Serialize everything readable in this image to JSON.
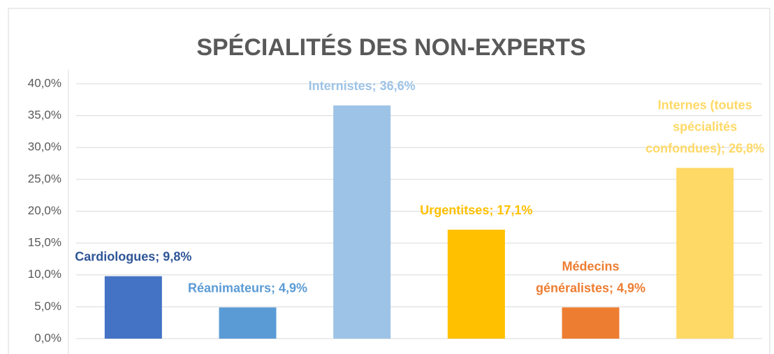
{
  "chart_data": {
    "type": "bar",
    "title": "SPÉCIALITÉS DES NON-EXPERTS",
    "values": [
      9.8,
      4.9,
      36.6,
      17.1,
      4.9,
      26.8
    ],
    "value_labels": [
      "Cardiologues; 9,8%",
      "Réanimateurs; 4,9%",
      "Internistes; 36,6%",
      "Urgentitses; 17,1%",
      "Médecins généralistes; 4,9%",
      "Internes (toutes spécialités confondues); 26,8%"
    ],
    "colors": [
      "#4472c4",
      "#5b9bd5",
      "#9dc3e6",
      "#ffc000",
      "#ed7d31",
      "#ffd966"
    ],
    "label_colors": [
      "#2f5597",
      "#5b9bd5",
      "#9dc3e6",
      "#ffc000",
      "#ed7d31",
      "#ffd966"
    ],
    "ylim": [
      0,
      40
    ],
    "yticks": [
      {
        "value": 0,
        "label": "0,0%"
      },
      {
        "value": 5,
        "label": "5,0%"
      },
      {
        "value": 10,
        "label": "10,0%"
      },
      {
        "value": 15,
        "label": "15,0%"
      },
      {
        "value": 20,
        "label": "20,0%"
      },
      {
        "value": 25,
        "label": "25,0%"
      },
      {
        "value": 30,
        "label": "30,0%"
      },
      {
        "value": 35,
        "label": "35,0%"
      },
      {
        "value": 40,
        "label": "40,0%"
      }
    ],
    "grid": true
  }
}
